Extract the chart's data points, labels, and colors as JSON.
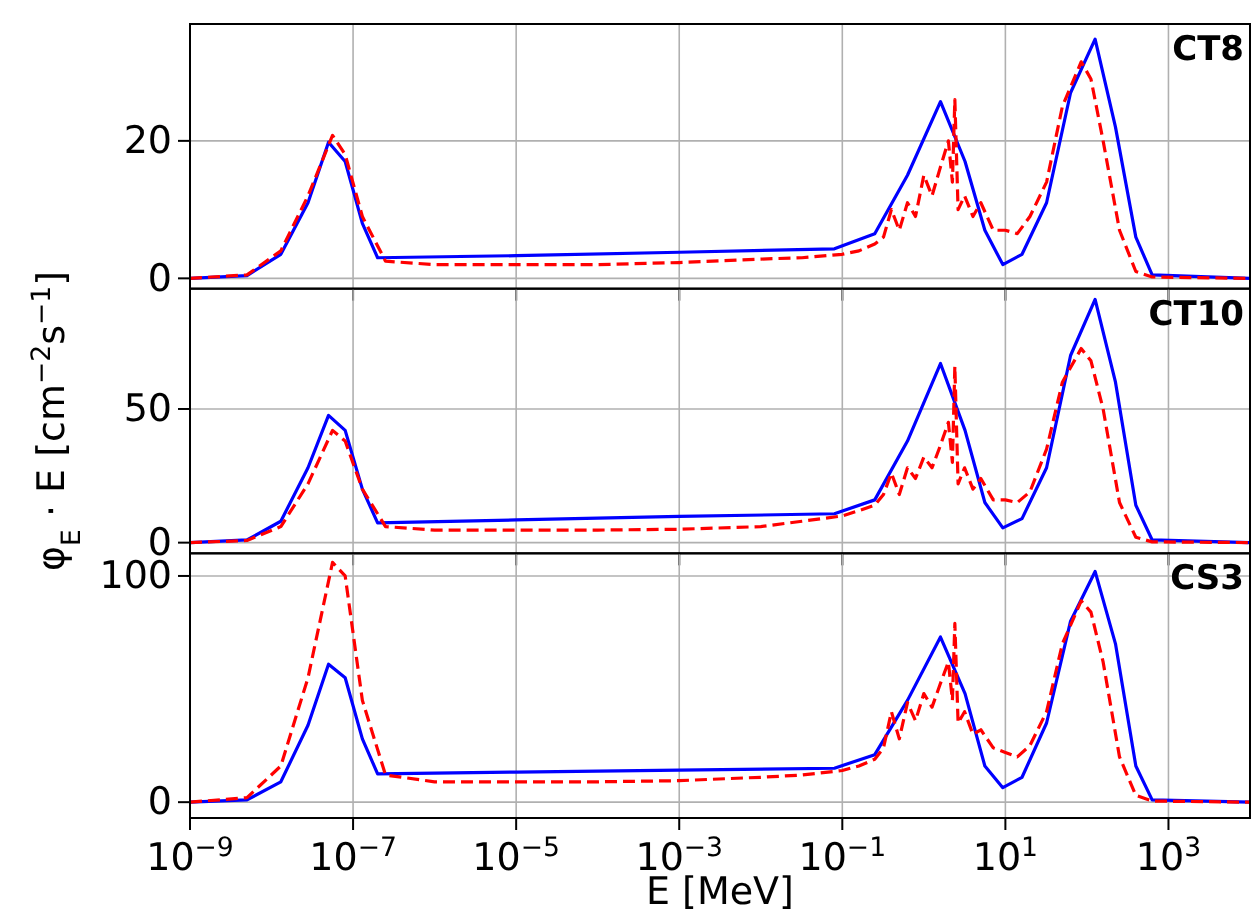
{
  "chart_data": [
    {
      "type": "line",
      "annotations": [
        "CT8"
      ],
      "log": "x",
      "grid": true,
      "tick_labels": "y",
      "xlim": [
        1e-09,
        10000.0
      ],
      "xticks": [
        {
          "value": 1e-09,
          "label": null
        },
        {
          "value": 1e-07,
          "label": null
        },
        {
          "value": 1e-05,
          "label": null
        },
        {
          "value": 0.001,
          "label": null
        },
        {
          "value": 0.1,
          "label": null
        },
        {
          "value": 10,
          "label": null
        },
        {
          "value": 1000,
          "label": null
        }
      ],
      "ylim": [
        -1.5,
        37
      ],
      "yticks": [
        0,
        20
      ],
      "series": [
        {
          "color": "#0000ff",
          "line_style": "solid",
          "x": [
            1e-09,
            5e-09,
            1.3e-08,
            2.8e-08,
            5e-08,
            8e-08,
            1.3e-07,
            2e-07,
            1e-05,
            0.001,
            0.08,
            0.25,
            0.63,
            1.6,
            3.2,
            5.6,
            9.3,
            16,
            32,
            63,
            126,
            224,
            398,
            631,
            10000.0
          ],
          "values": [
            0,
            0.4,
            3.5,
            11,
            19.8,
            17,
            8,
            3,
            3.3,
            3.8,
            4.3,
            6.5,
            15,
            25.7,
            17,
            7,
            2,
            3.5,
            11,
            27,
            34.8,
            22,
            6,
            0.5,
            0
          ]
        },
        {
          "color": "#ff0000",
          "line_style": "dashed",
          "x": [
            1e-09,
            5e-09,
            1.3e-08,
            2.8e-08,
            5.6e-08,
            8e-08,
            1.3e-07,
            2.5e-07,
            1e-06,
            1e-05,
            0.0001,
            0.001,
            0.01,
            0.032,
            0.1,
            0.16,
            0.25,
            0.32,
            0.4,
            0.5,
            0.63,
            0.79,
            1,
            1.26,
            1.58,
            2,
            2.24,
            2.4,
            2.63,
            3.16,
            4,
            5,
            7.1,
            10,
            14,
            20,
            32,
            50,
            85,
            112,
            158,
            251,
            398,
            631,
            10000.0
          ],
          "values": [
            0,
            0.5,
            4,
            12,
            20.8,
            18,
            9,
            2.5,
            2,
            2,
            2,
            2.3,
            2.8,
            3,
            3.5,
            4,
            5,
            6,
            10,
            7,
            11,
            9,
            15,
            12,
            16,
            20,
            14,
            26,
            10,
            12,
            9,
            11,
            7,
            7,
            6.5,
            9,
            14,
            25,
            31.5,
            29,
            20,
            7,
            1,
            0.2,
            0
          ]
        }
      ]
    },
    {
      "type": "line",
      "annotations": [
        "CT10"
      ],
      "ylabel": "φ$_{E}$ · E [cm$^{−2}$s$^{−1}$]",
      "log": "x",
      "grid": true,
      "tick_labels": "y",
      "xlim": [
        1e-09,
        10000.0
      ],
      "xticks": [
        {
          "value": 1e-09,
          "label": null
        },
        {
          "value": 1e-07,
          "label": null
        },
        {
          "value": 1e-05,
          "label": null
        },
        {
          "value": 0.001,
          "label": null
        },
        {
          "value": 0.1,
          "label": null
        },
        {
          "value": 10,
          "label": null
        },
        {
          "value": 1000,
          "label": null
        }
      ],
      "ylim": [
        -4,
        95
      ],
      "yticks": [
        0,
        50
      ],
      "series": [
        {
          "color": "#0000ff",
          "line_style": "solid",
          "x": [
            1e-09,
            5e-09,
            1.3e-08,
            2.8e-08,
            5e-08,
            8e-08,
            1.3e-07,
            2e-07,
            1e-05,
            0.001,
            0.08,
            0.25,
            0.63,
            1.6,
            3.2,
            5.6,
            9.3,
            16,
            32,
            63,
            126,
            224,
            398,
            631,
            10000.0
          ],
          "values": [
            0,
            1,
            8,
            28,
            47.6,
            42,
            20,
            7.4,
            8.5,
            9.8,
            10.8,
            16,
            38,
            67,
            42,
            15,
            5.5,
            9,
            28,
            70,
            91,
            60,
            14,
            1,
            0
          ]
        },
        {
          "color": "#ff0000",
          "line_style": "dashed",
          "x": [
            1e-09,
            5e-09,
            1.3e-08,
            2.8e-08,
            5.6e-08,
            8e-08,
            1.3e-07,
            2.5e-07,
            1e-06,
            1e-05,
            0.0001,
            0.001,
            0.01,
            0.032,
            0.1,
            0.16,
            0.25,
            0.32,
            0.4,
            0.5,
            0.63,
            0.79,
            1,
            1.26,
            1.58,
            2,
            2.24,
            2.4,
            2.63,
            3.16,
            4,
            5,
            7.1,
            10,
            14,
            20,
            32,
            50,
            85,
            112,
            158,
            251,
            398,
            631,
            10000.0
          ],
          "values": [
            0,
            0.8,
            6,
            22,
            42,
            38,
            20,
            6,
            4.7,
            4.7,
            4.7,
            5,
            6,
            8,
            10,
            12,
            14,
            18,
            26,
            18,
            28,
            24,
            32,
            28,
            36,
            45,
            30,
            66,
            22,
            28,
            20,
            24,
            16,
            16,
            15,
            19,
            35,
            60,
            72.6,
            68,
            50,
            15,
            2,
            0.3,
            0
          ]
        }
      ]
    },
    {
      "type": "line",
      "annotations": [
        "CS3"
      ],
      "xlabel": "E [MeV]",
      "log": "x",
      "grid": true,
      "xlim": [
        1e-09,
        10000.0
      ],
      "xticks": [
        {
          "value": 1e-09,
          "label": "10$^{−9}$"
        },
        {
          "value": 1e-07,
          "label": "10$^{−7}$"
        },
        {
          "value": 1e-05,
          "label": "10$^{−5}$"
        },
        {
          "value": 0.001,
          "label": "10$^{−3}$"
        },
        {
          "value": 0.1,
          "label": "10$^{−1}$"
        },
        {
          "value": 10,
          "label": "10$^{1}$"
        },
        {
          "value": 1000,
          "label": "10$^{3}$"
        }
      ],
      "ylim": [
        -7,
        110
      ],
      "yticks": [
        0,
        100
      ],
      "series": [
        {
          "color": "#0000ff",
          "line_style": "solid",
          "x": [
            1e-09,
            5e-09,
            1.3e-08,
            2.8e-08,
            5e-08,
            8e-08,
            1.3e-07,
            2e-07,
            1e-05,
            0.001,
            0.08,
            0.25,
            0.63,
            1.6,
            3.2,
            5.6,
            9.3,
            16,
            32,
            63,
            126,
            224,
            398,
            631,
            10000.0
          ],
          "values": [
            0,
            1,
            9,
            34,
            61,
            55,
            28,
            12.5,
            13.3,
            14.2,
            15,
            21,
            45,
            73,
            48,
            16,
            6.4,
            11,
            35,
            80,
            102,
            70,
            16,
            1,
            0
          ]
        },
        {
          "color": "#ff0000",
          "line_style": "dashed",
          "x": [
            1e-09,
            5e-09,
            1.3e-08,
            2.8e-08,
            5.6e-08,
            8e-08,
            1.3e-07,
            2.5e-07,
            1e-06,
            1e-05,
            0.0001,
            0.001,
            0.01,
            0.032,
            0.1,
            0.16,
            0.25,
            0.32,
            0.4,
            0.5,
            0.63,
            0.79,
            1,
            1.26,
            1.58,
            2,
            2.24,
            2.4,
            2.63,
            3.16,
            4,
            5,
            7.1,
            10,
            14,
            20,
            32,
            50,
            85,
            112,
            158,
            251,
            398,
            631,
            10000.0
          ],
          "values": [
            0,
            2,
            16,
            55,
            106,
            100,
            45,
            12,
            9,
            9,
            9,
            9.5,
            11,
            12,
            14,
            16,
            19,
            24,
            40,
            28,
            44,
            36,
            48,
            42,
            52,
            62,
            45,
            79,
            35,
            40,
            30,
            32,
            24,
            22,
            20,
            25,
            40,
            70,
            89,
            84,
            62,
            20,
            3,
            0.5,
            0
          ]
        }
      ]
    }
  ]
}
